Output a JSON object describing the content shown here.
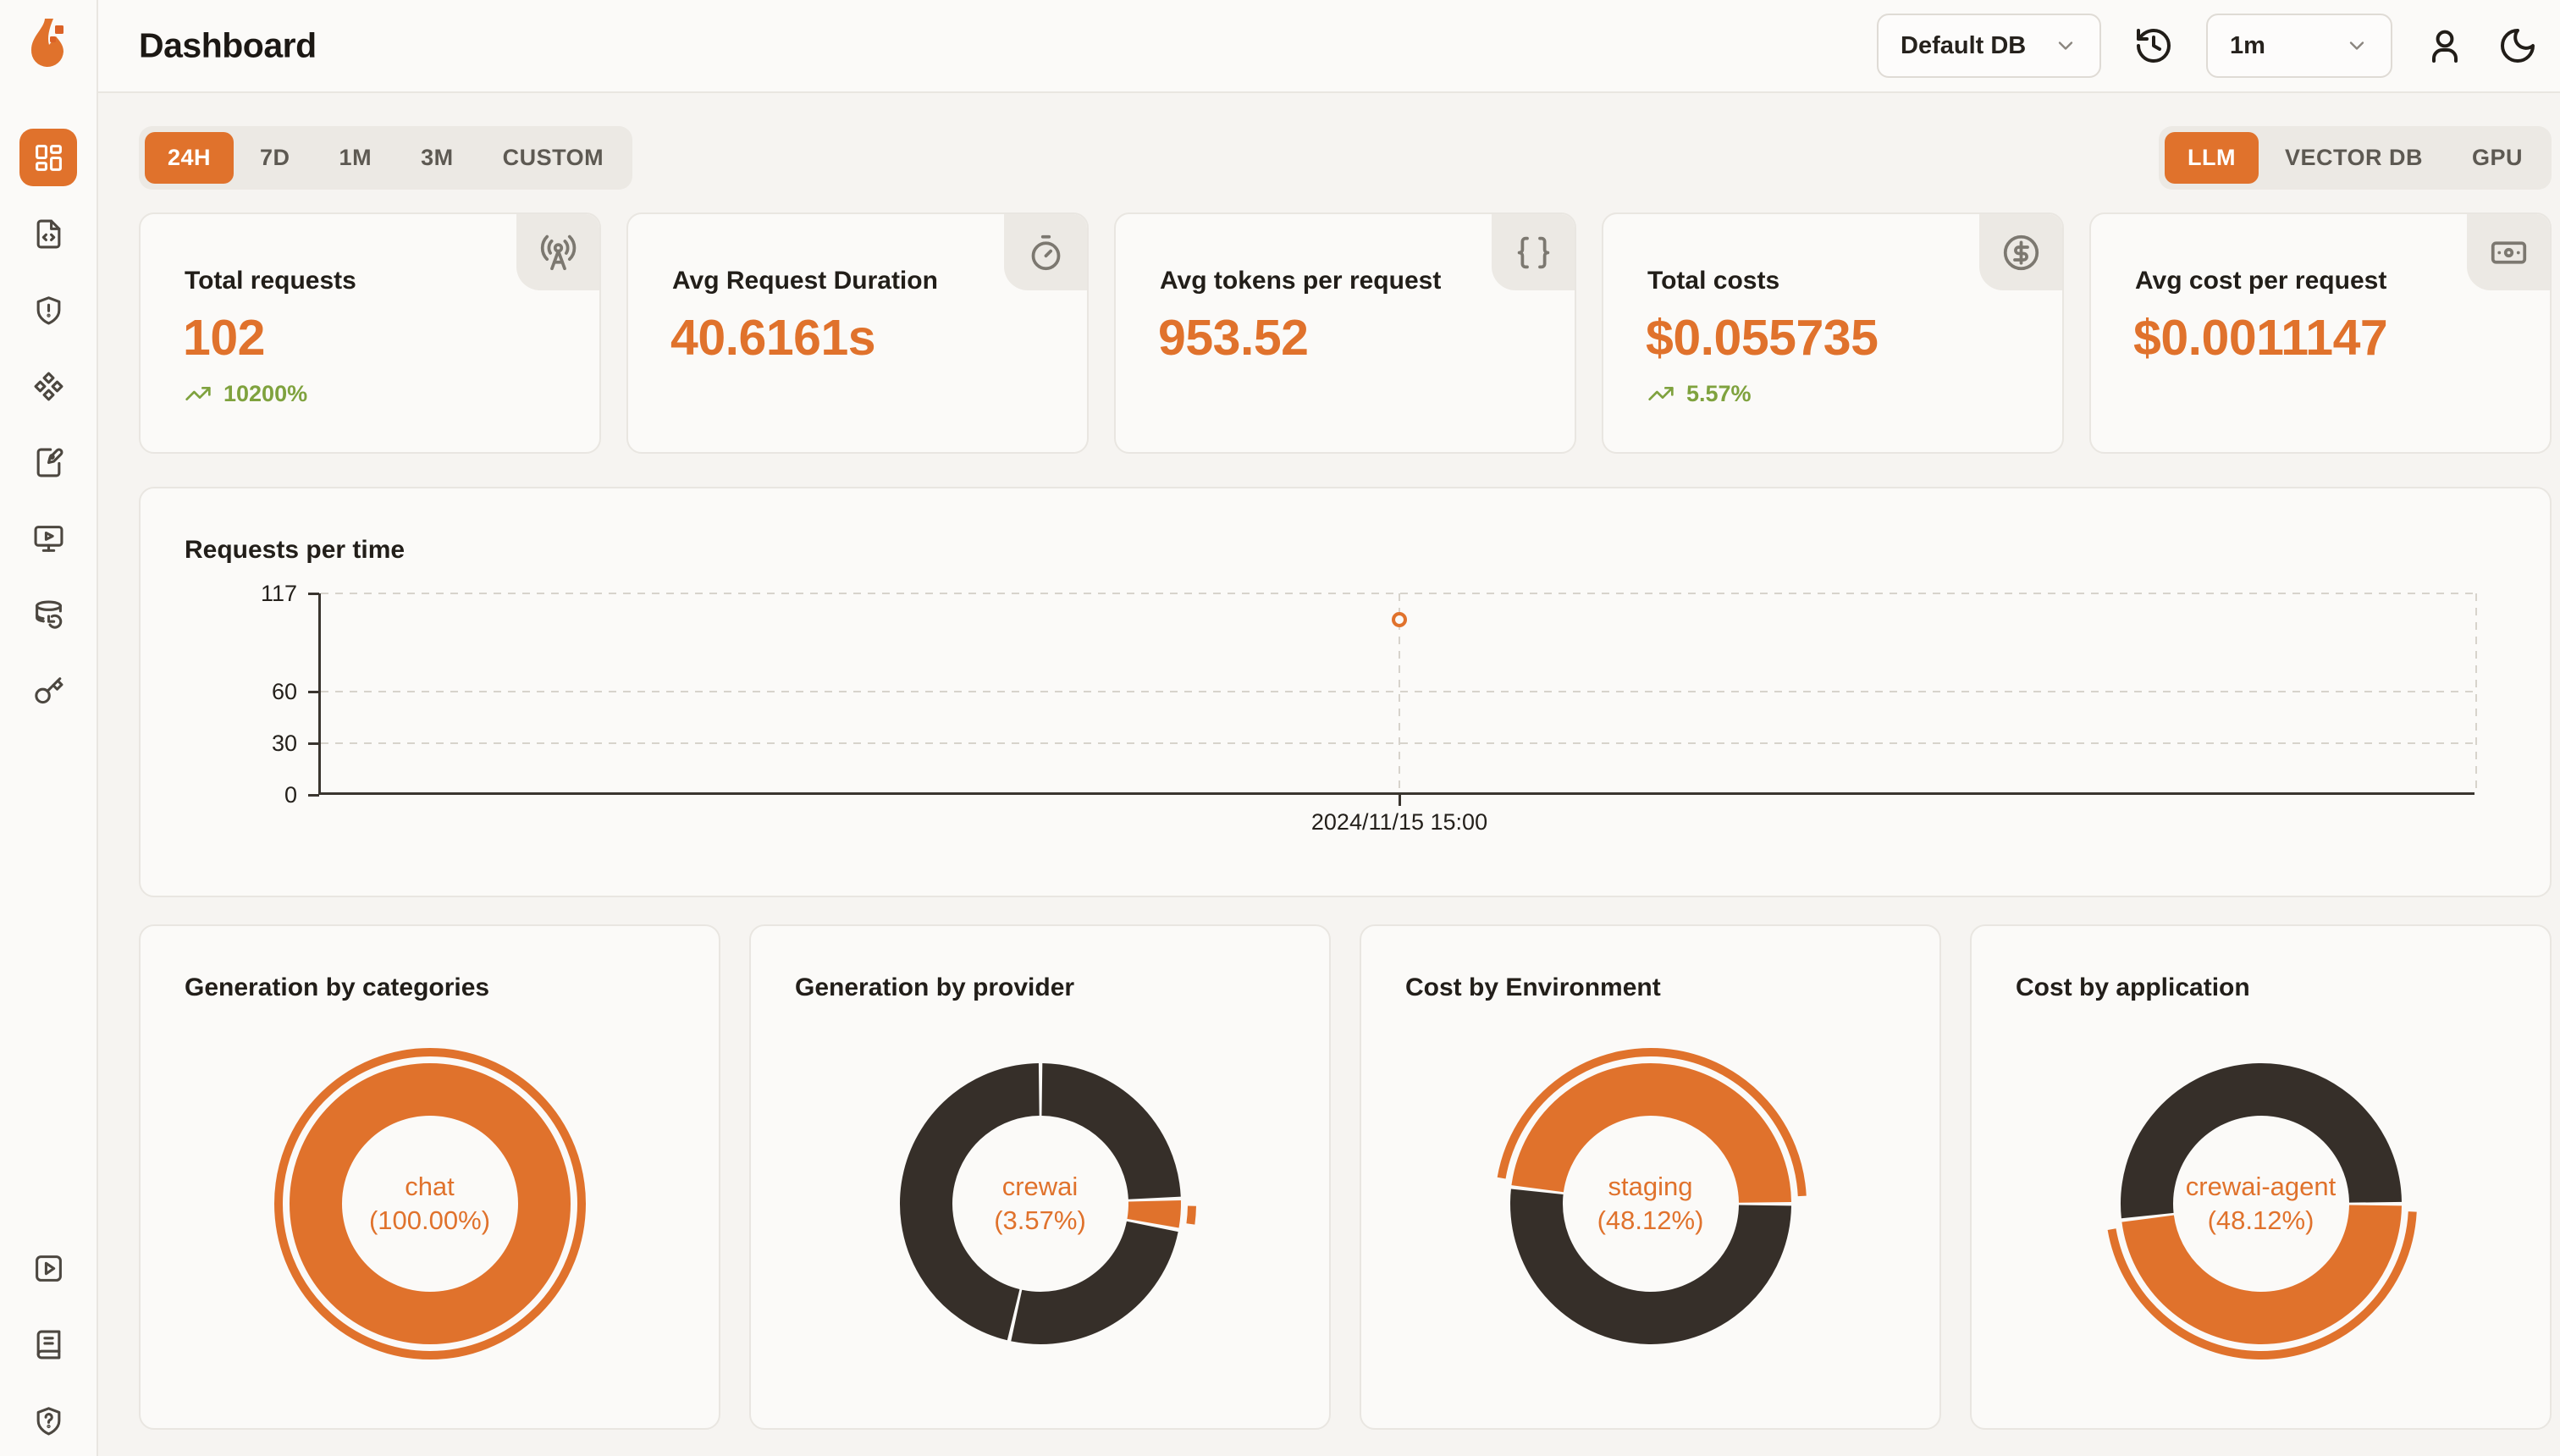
{
  "colors": {
    "accent": "#E0722C",
    "dark_segment": "#362F29",
    "positive": "#7FA23E",
    "page_bg": "#F6F4F1",
    "panel_bg": "#FBFAF8",
    "card_bg": "#FBFAF8",
    "card_border": "#E9E6E1",
    "chip_bg": "#ECE9E4",
    "badge_bg": "#ECE9E4",
    "text": "#1C1814",
    "muted_text": "#5D5952",
    "icon_gray": "#7C7870",
    "grid_line": "#D7D3CC",
    "axis": "#3A352F"
  },
  "header": {
    "title": "Dashboard",
    "db_select": {
      "value": "Default DB",
      "icon": "chevron-down"
    },
    "refresh_icon": "history-refresh",
    "interval_select": {
      "value": "1m",
      "icon": "chevron-down"
    },
    "profile_icon": "user",
    "theme_icon": "moon"
  },
  "sidebar": {
    "logo_icon": "flame-logo",
    "items": [
      {
        "icon": "layout-dashboard",
        "active": true
      },
      {
        "icon": "file-code"
      },
      {
        "icon": "shield-alert"
      },
      {
        "icon": "component-diamonds"
      },
      {
        "icon": "notebook-pen"
      },
      {
        "icon": "monitor-play"
      },
      {
        "icon": "database-backup"
      },
      {
        "icon": "key"
      }
    ],
    "footer_items": [
      {
        "icon": "square-play"
      },
      {
        "icon": "book"
      },
      {
        "icon": "shield-question"
      }
    ]
  },
  "filters": {
    "time_ranges": [
      "24H",
      "7D",
      "1M",
      "3M",
      "CUSTOM"
    ],
    "active_time_range": "24H",
    "signal_tabs": [
      "LLM",
      "VECTOR DB",
      "GPU"
    ],
    "active_signal_tab": "LLM"
  },
  "stat_cards": [
    {
      "title": "Total requests",
      "value": "102",
      "trend": "10200%",
      "trend_icon": "trending-up",
      "icon": "radio-tower"
    },
    {
      "title": "Avg Request Duration",
      "value": "40.6161s",
      "icon": "timer"
    },
    {
      "title": "Avg tokens per request",
      "value": "953.52",
      "icon": "braces"
    },
    {
      "title": "Total costs",
      "value": "$0.055735",
      "trend": "5.57%",
      "trend_icon": "trending-up",
      "icon": "circle-dollar-sign"
    },
    {
      "title": "Avg cost per request",
      "value": "$0.0011147",
      "icon": "banknote"
    }
  ],
  "chart_data": [
    {
      "type": "line",
      "title": "Requests per time",
      "x": [
        "2024/11/15 15:00"
      ],
      "series": [
        {
          "name": "requests",
          "values": [
            102
          ]
        }
      ],
      "ylim": [
        0,
        117
      ],
      "yticks": [
        0,
        30,
        60,
        117
      ],
      "grid": "dashed-horizontal",
      "point_style": "hollow-circle",
      "layout": {
        "x_frac": 0.5,
        "legend": "none",
        "right_edge_dashed": true
      }
    },
    {
      "type": "pie",
      "title": "Generation by categories",
      "center_label": [
        "chat",
        "(100.00%)"
      ],
      "start_deg": 0,
      "segments": [
        {
          "label": "chat",
          "pct": 100,
          "color": "orange"
        }
      ],
      "emphasis": 0
    },
    {
      "type": "pie",
      "title": "Generation by provider",
      "center_label": [
        "crewai",
        "(3.57%)"
      ],
      "start_deg": 0,
      "segments": [
        {
          "label": "",
          "pct": 24.4,
          "color": "dark"
        },
        {
          "label": "crewai",
          "pct": 3.57,
          "color": "orange"
        },
        {
          "label": "",
          "pct": 25.6,
          "color": "dark"
        },
        {
          "label": "",
          "pct": 46.43,
          "color": "dark"
        }
      ],
      "emphasis": 1
    },
    {
      "type": "pie",
      "title": "Cost by Environment",
      "center_label": [
        "staging",
        "(48.12%)"
      ],
      "start_deg": 90,
      "segments": [
        {
          "label": "",
          "pct": 51.88,
          "color": "dark"
        },
        {
          "label": "staging",
          "pct": 48.12,
          "color": "orange"
        }
      ],
      "emphasis": 1
    },
    {
      "type": "pie",
      "title": "Cost by application",
      "center_label": [
        "crewai-agent",
        "(48.12%)"
      ],
      "start_deg": 90,
      "segments": [
        {
          "label": "crewai-agent",
          "pct": 48.12,
          "color": "orange"
        },
        {
          "label": "",
          "pct": 51.88,
          "color": "dark"
        }
      ],
      "emphasis": 0
    }
  ]
}
